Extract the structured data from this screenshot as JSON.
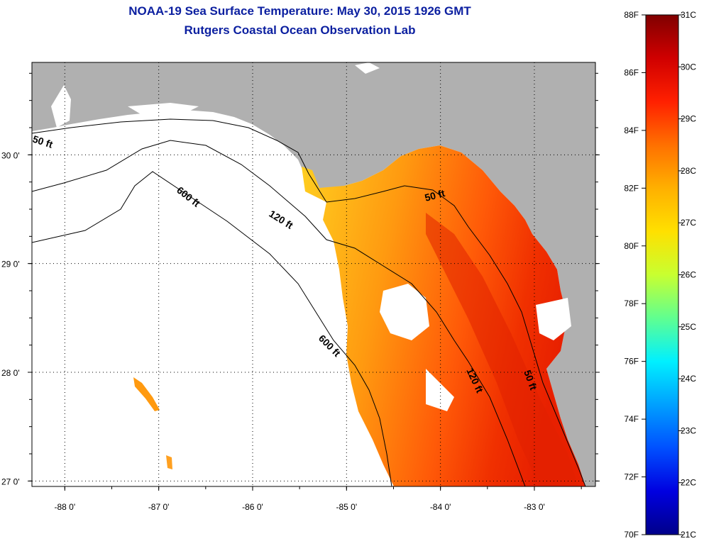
{
  "title": "NOAA-19 Sea Surface Temperature:  May 30, 2015 1926 GMT",
  "subtitle": "Rutgers Coastal Ocean Observation Lab",
  "map": {
    "lon_range": [
      -88.35,
      -82.35
    ],
    "lat_range": [
      26.95,
      30.85
    ],
    "lon_ticks": [
      {
        "value": -88,
        "label": "-88 0'"
      },
      {
        "value": -87,
        "label": "-87 0'"
      },
      {
        "value": -86,
        "label": "-86 0'"
      },
      {
        "value": -85,
        "label": "-85 0'"
      },
      {
        "value": -84,
        "label": "-84 0'"
      },
      {
        "value": -83,
        "label": "-83 0'"
      }
    ],
    "lat_ticks": [
      {
        "value": 30,
        "label": "30 0'"
      },
      {
        "value": 29,
        "label": "29 0'"
      },
      {
        "value": 28,
        "label": "28 0'"
      },
      {
        "value": 27,
        "label": "27 0'"
      }
    ],
    "land_color": "#b0b0b0",
    "nodata_color": "#ffffff",
    "grid": true,
    "contours": [
      {
        "label": "50 ft"
      },
      {
        "label": "120 ft"
      },
      {
        "label": "600 ft"
      },
      {
        "label": "50 ft"
      },
      {
        "label": "600 ft"
      },
      {
        "label": "120 ft"
      },
      {
        "label": "50 ft"
      }
    ]
  },
  "colorbar": {
    "min_f": 70,
    "max_f": 88,
    "min_c": 21,
    "max_c": 31,
    "f_labels": [
      "88F",
      "86F",
      "84F",
      "82F",
      "80F",
      "78F",
      "76F",
      "74F",
      "72F",
      "70F"
    ],
    "c_labels": [
      "31C",
      "30C",
      "29C",
      "28C",
      "27C",
      "26C",
      "25C",
      "24C",
      "23C",
      "22C",
      "21C"
    ],
    "colors": [
      "#800000",
      "#d00000",
      "#ff2000",
      "#ff7000",
      "#ffb000",
      "#ffe000",
      "#c8ff30",
      "#60ff90",
      "#00f0ff",
      "#00a0ff",
      "#0050ff",
      "#0000e0",
      "#00008a"
    ]
  }
}
